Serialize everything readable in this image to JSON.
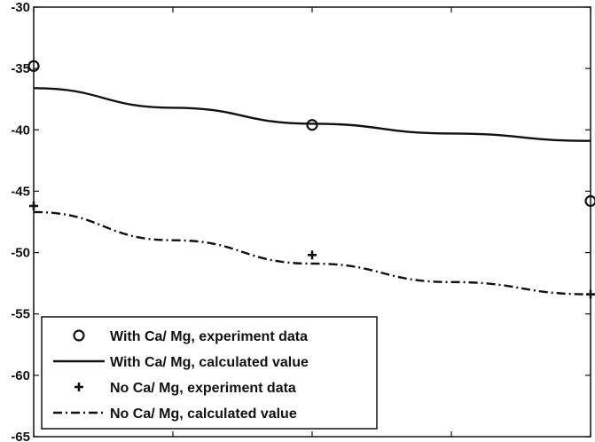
{
  "chart_data": {
    "type": "line",
    "x": [
      1,
      2,
      3
    ],
    "xlim": [
      1,
      3
    ],
    "ylim": [
      -65,
      -30
    ],
    "yticks": [
      -30,
      -35,
      -40,
      -45,
      -50,
      -55,
      -60,
      -65
    ],
    "ytick_labels": [
      "-30",
      "-35",
      "-40",
      "-45",
      "-50",
      "-55",
      "-60",
      "-65"
    ],
    "xtick_labels": [],
    "title": "",
    "xlabel": "",
    "ylabel": "",
    "grid": false,
    "legend_position": "bottom-left",
    "series": [
      {
        "name": "With Ca/ Mg, experiment data",
        "kind": "markers",
        "marker": "circle",
        "x": [
          1,
          2,
          3
        ],
        "y": [
          -34.8,
          -39.6,
          -45.8
        ]
      },
      {
        "name": "With Ca/ Mg, calculated value",
        "kind": "line",
        "dash": "solid",
        "x": [
          1,
          1.5,
          2,
          2.5,
          3
        ],
        "y": [
          -36.6,
          -38.2,
          -39.5,
          -40.3,
          -40.9
        ]
      },
      {
        "name": "No Ca/ Mg, experiment data",
        "kind": "markers",
        "marker": "plus",
        "x": [
          1,
          2,
          3
        ],
        "y": [
          -46.2,
          -50.2,
          -53.4
        ]
      },
      {
        "name": "No Ca/ Mg, calculated value",
        "kind": "line",
        "dash": "dashdot",
        "x": [
          1,
          1.5,
          2,
          2.5,
          3
        ],
        "y": [
          -46.7,
          -49.0,
          -50.9,
          -52.4,
          -53.4
        ]
      }
    ],
    "colors": {
      "ink": "#111111",
      "background": "#ffffff"
    }
  }
}
